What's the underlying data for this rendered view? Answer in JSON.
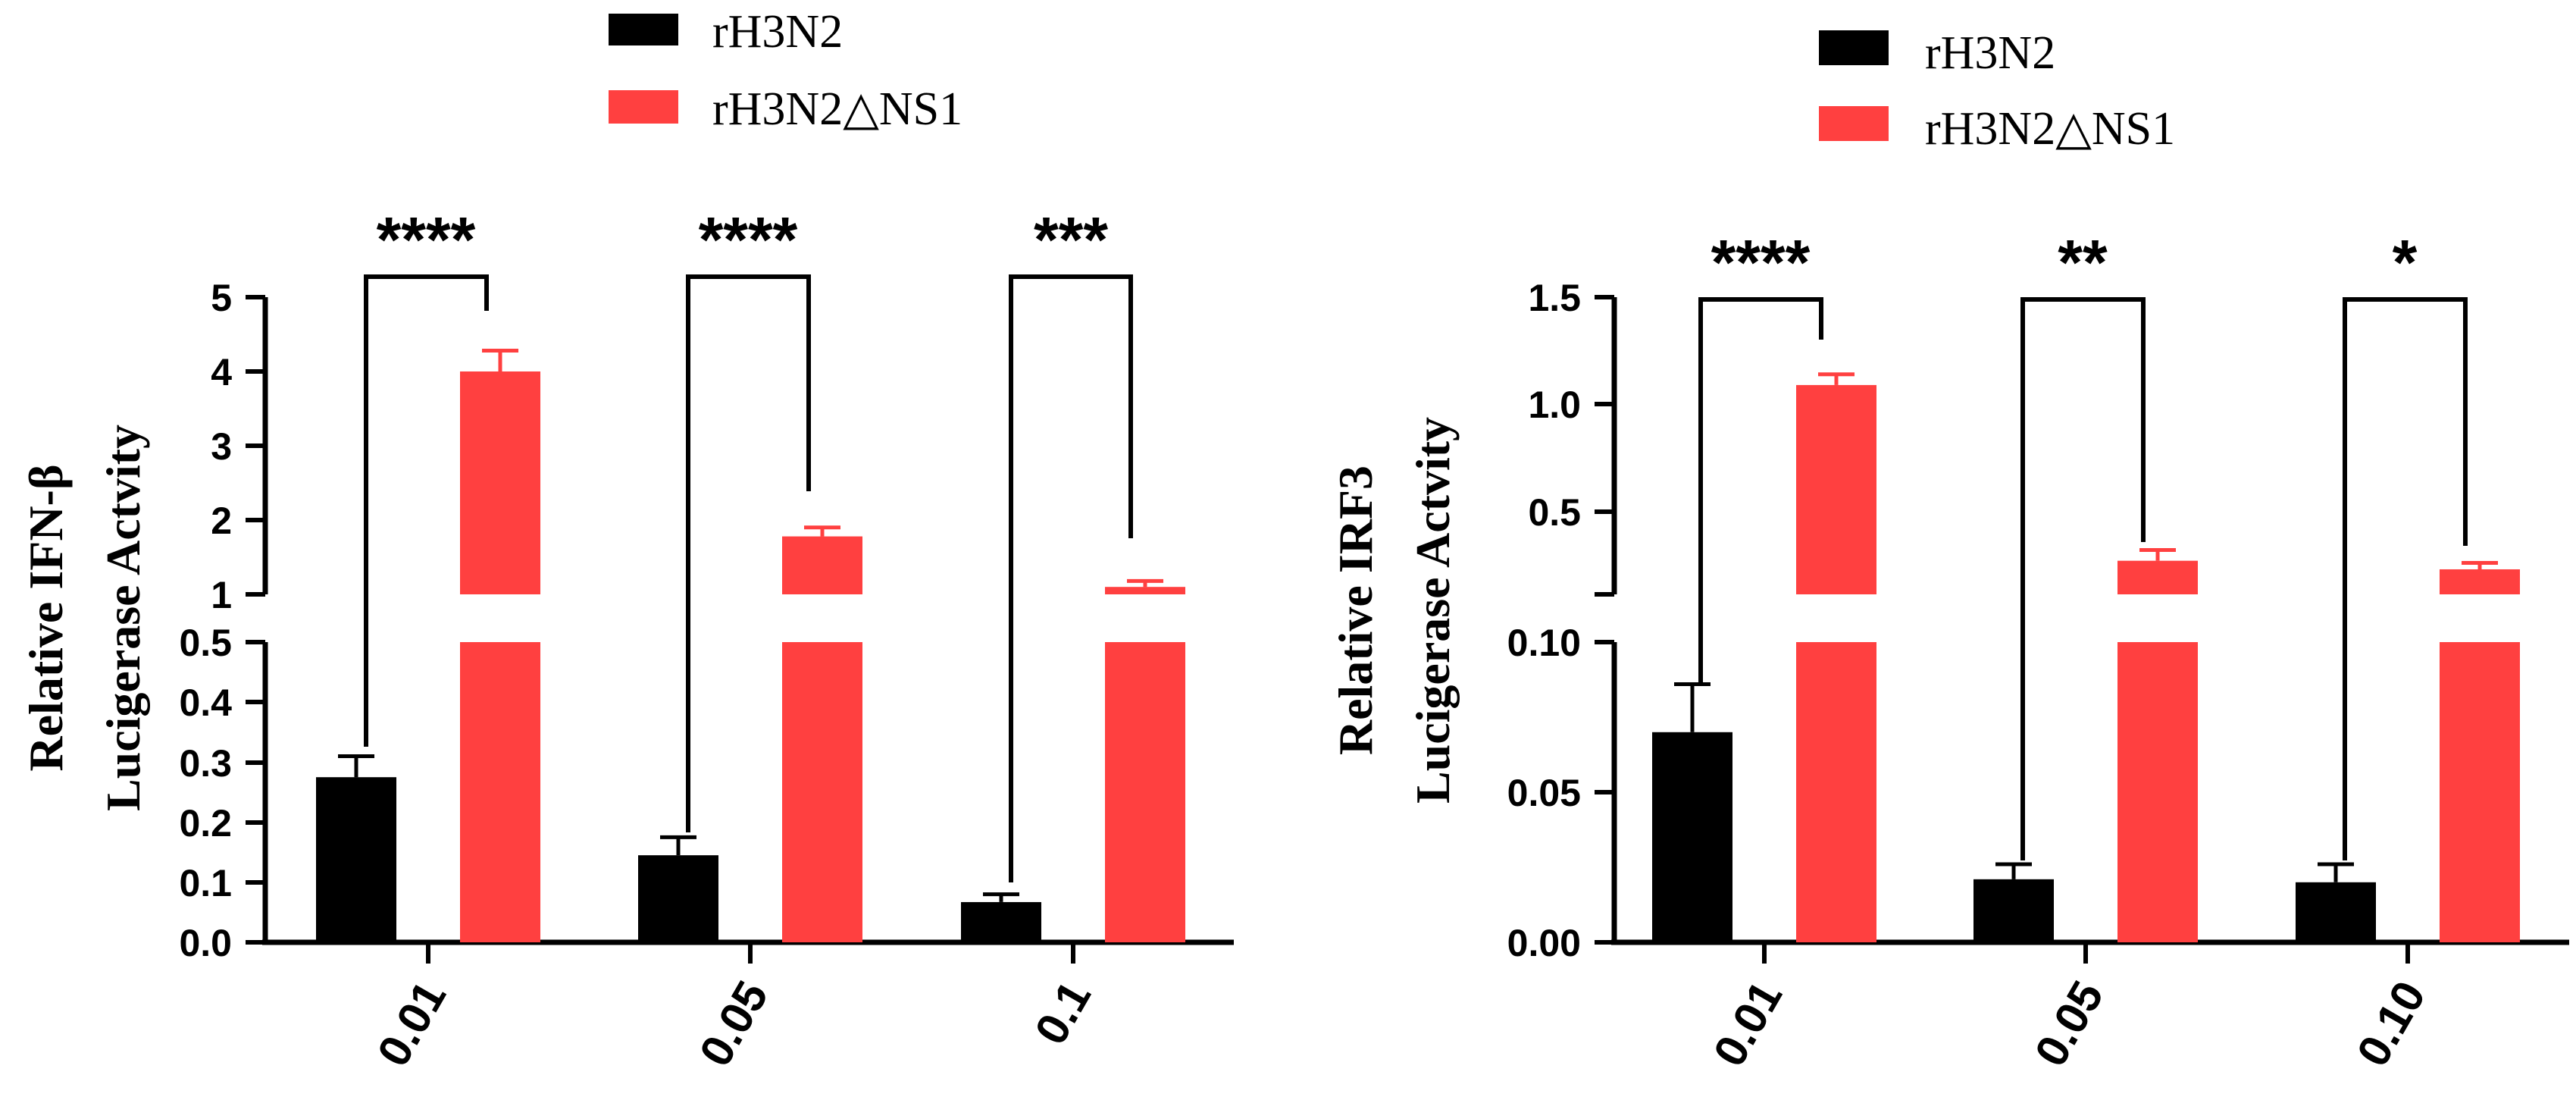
{
  "chart_data": [
    {
      "type": "bar",
      "categories": [
        "0.01",
        "0.05",
        "0.1"
      ],
      "ylabel_lines": [
        "Relative IFN-β",
        "Lucigerase Actvity"
      ],
      "axis_break": true,
      "ylim_lower": [
        0,
        0.5
      ],
      "ylim_upper": [
        1,
        5
      ],
      "yticks_lower": [
        "0.0",
        "0.1",
        "0.2",
        "0.3",
        "0.4",
        "0.5"
      ],
      "yticks_upper": [
        "1",
        "2",
        "3",
        "4",
        "5"
      ],
      "legend_position": "top-center",
      "series": [
        {
          "name": "rH3N2",
          "color": "#000000",
          "values": [
            0.275,
            0.145,
            0.067
          ],
          "errors": [
            0.035,
            0.03,
            0.013
          ]
        },
        {
          "name": "rH3N2△NS1",
          "color": "#ff4040",
          "values": [
            4.0,
            1.78,
            1.1
          ],
          "errors": [
            0.28,
            0.12,
            0.08
          ]
        }
      ],
      "significance": [
        "****",
        "****",
        "***"
      ]
    },
    {
      "type": "bar",
      "categories": [
        "0.01",
        "0.05",
        "0.10"
      ],
      "ylabel_lines": [
        "Relative IRF3",
        "Lucigerase Actvity"
      ],
      "axis_break": true,
      "ylim_lower": [
        0,
        0.1
      ],
      "ylim_upper": [
        0,
        1.5
      ],
      "yticks_lower": [
        "0.00",
        "0.05",
        "0.10"
      ],
      "yticks_upper": [
        "0.5",
        "1.0",
        "1.5"
      ],
      "legend_position": "top-center",
      "series": [
        {
          "name": "rH3N2",
          "color": "#000000",
          "values": [
            0.07,
            0.021,
            0.02
          ],
          "errors": [
            0.016,
            0.005,
            0.006
          ]
        },
        {
          "name": "rH3N2△NS1",
          "color": "#ff4040",
          "values": [
            1.09,
            0.27,
            0.23
          ],
          "errors": [
            0.05,
            0.05,
            0.03
          ]
        }
      ],
      "significance": [
        "****",
        "**",
        "*"
      ]
    }
  ]
}
